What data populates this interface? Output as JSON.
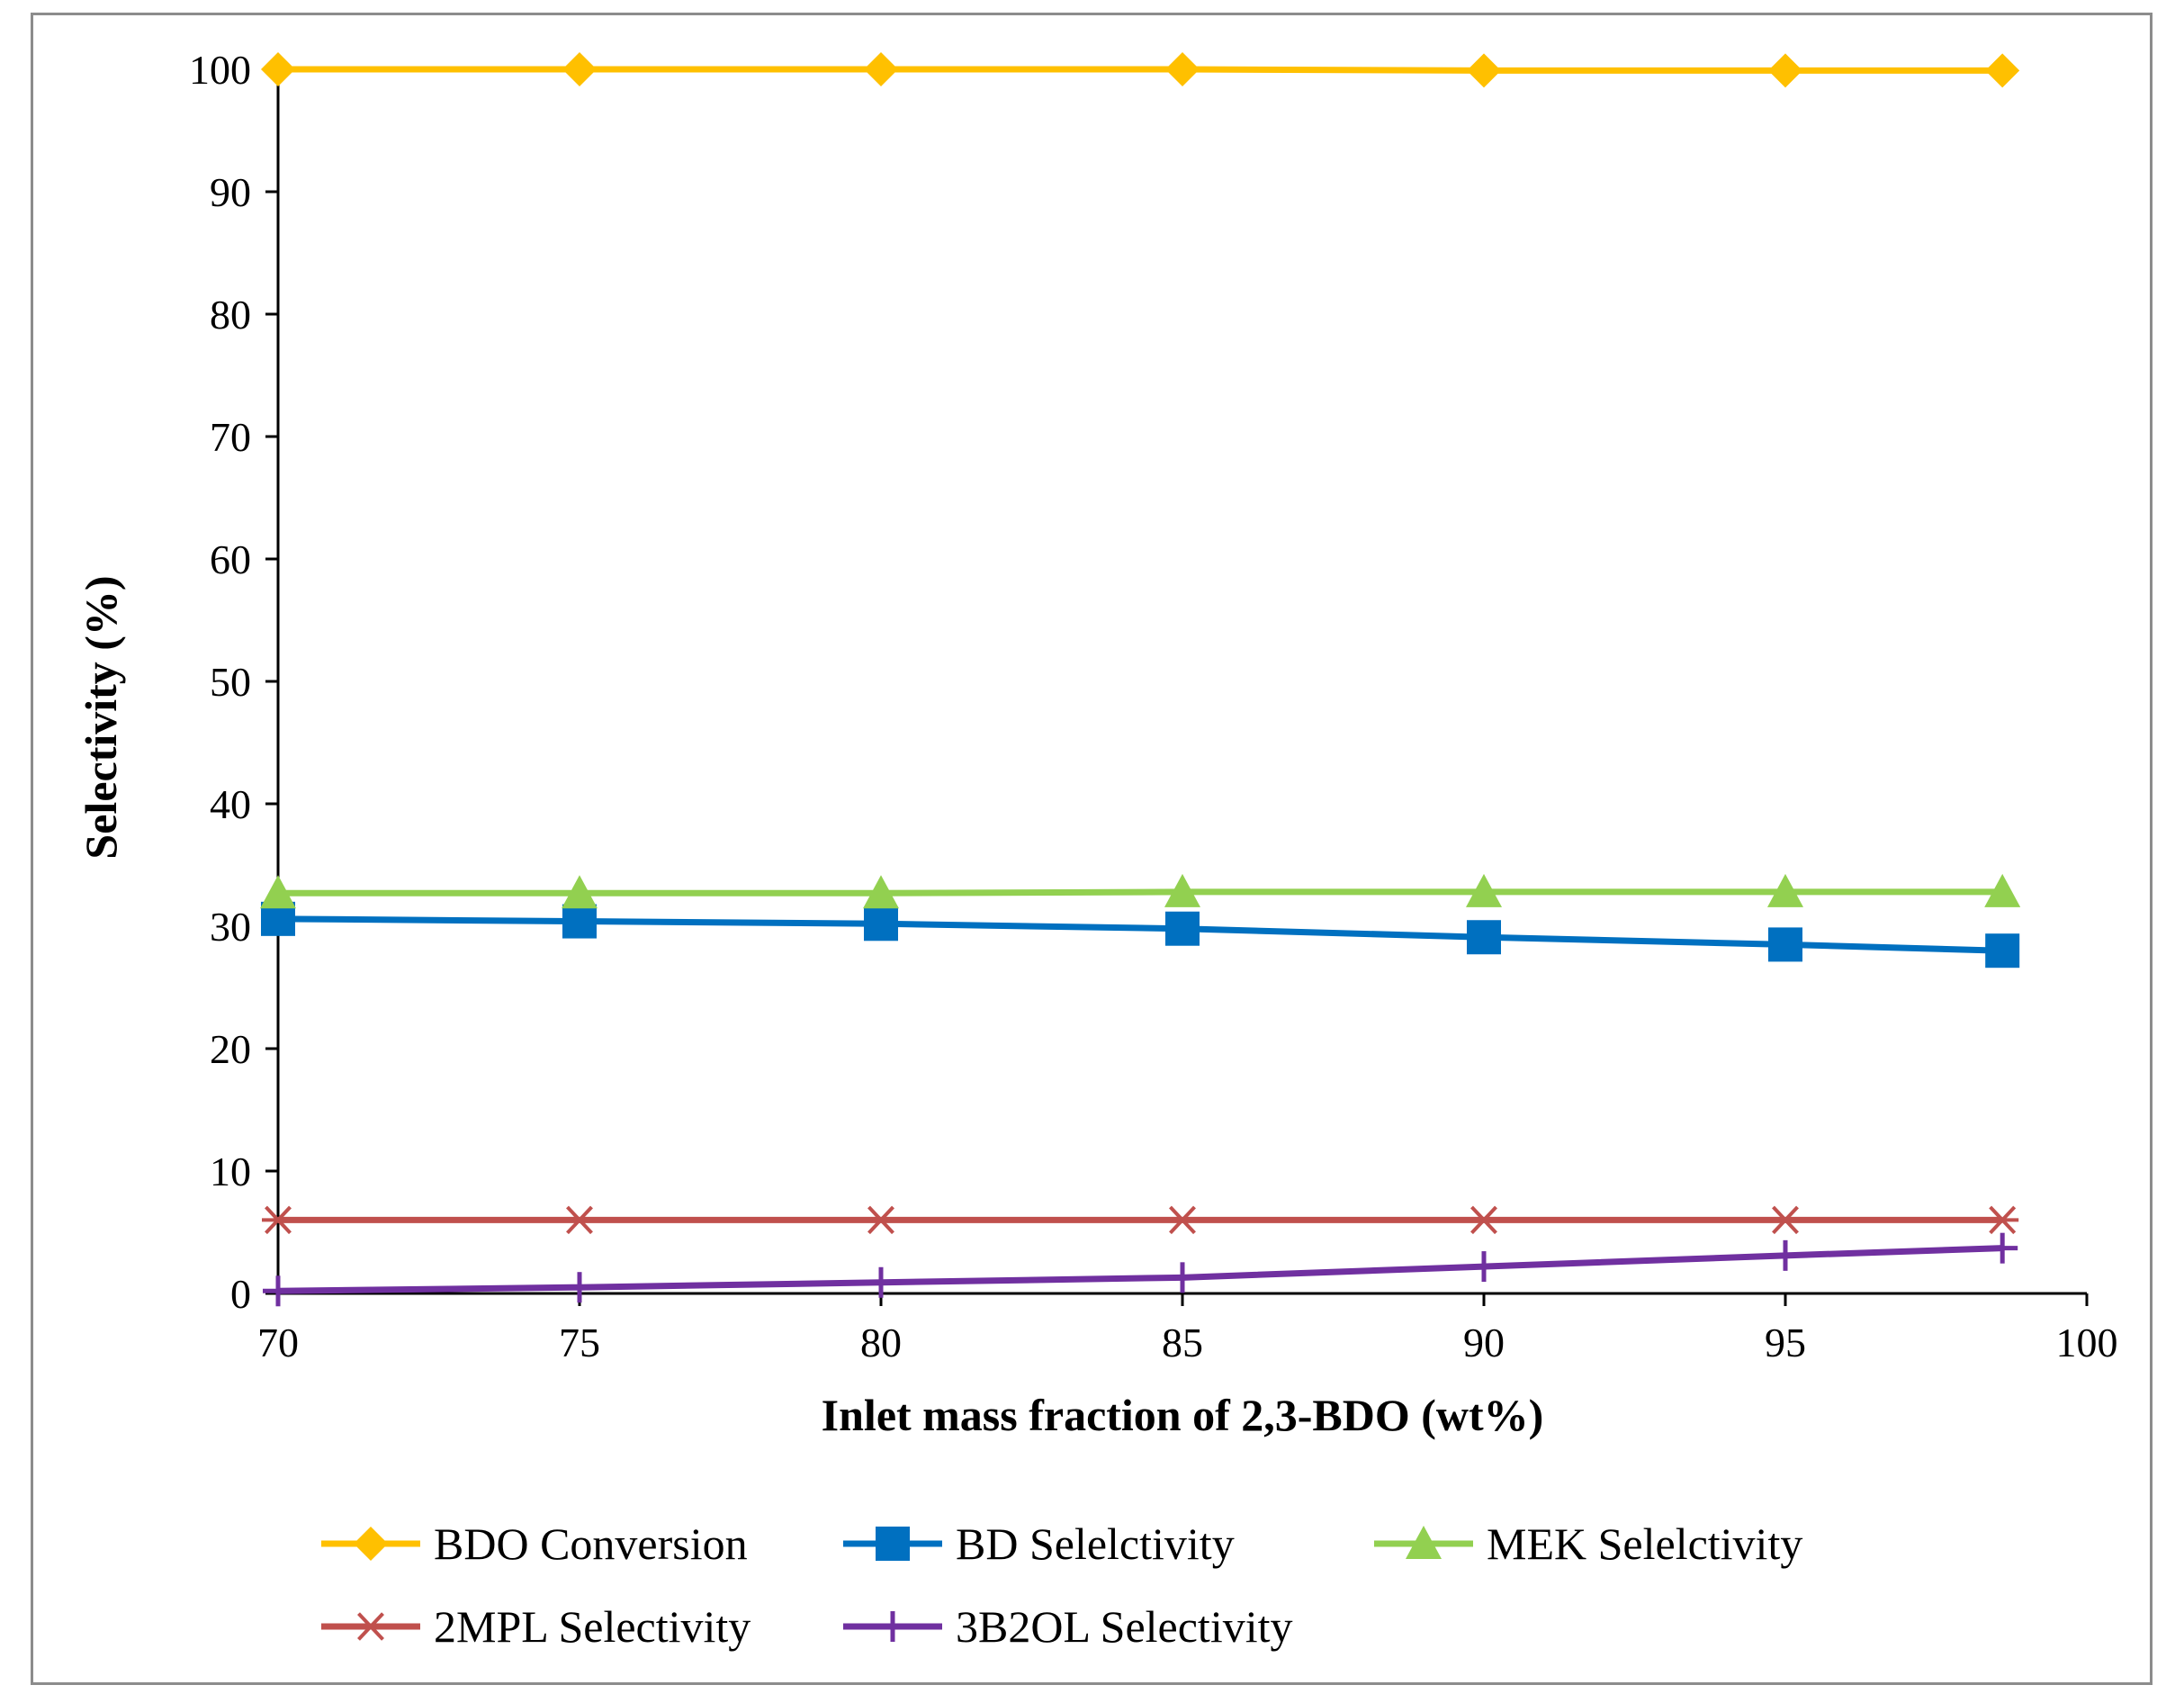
{
  "chart_data": {
    "type": "line",
    "title": "",
    "xlabel": "Inlet mass fraction of 2,3-BDO (wt%)",
    "ylabel": "Selectivity (%)",
    "xlim": [
      70,
      100
    ],
    "ylim": [
      0,
      100
    ],
    "xticks": [
      70,
      75,
      80,
      85,
      90,
      95,
      100
    ],
    "yticks": [
      0,
      10,
      20,
      30,
      40,
      50,
      60,
      70,
      80,
      90,
      100
    ],
    "grid": false,
    "legend_position": "bottom",
    "x": [
      70,
      75,
      80,
      85,
      90,
      95,
      98.6
    ],
    "series": [
      {
        "name": "BDO Conversion",
        "color": "#FFC000",
        "marker": "diamond",
        "values": [
          100,
          100,
          100,
          100,
          99.9,
          99.9,
          99.9
        ]
      },
      {
        "name": "BD Selelctivity",
        "color": "#0070C0",
        "marker": "square",
        "values": [
          30.6,
          30.4,
          30.2,
          29.8,
          29.1,
          28.5,
          28.0
        ]
      },
      {
        "name": "MEK Selelctivity",
        "color": "#92D050",
        "marker": "triangle",
        "values": [
          32.7,
          32.7,
          32.7,
          32.8,
          32.8,
          32.8,
          32.8
        ]
      },
      {
        "name": "2MPL Selectivity",
        "color": "#C0504D",
        "marker": "asterisk",
        "values": [
          6.0,
          6.0,
          6.0,
          6.0,
          6.0,
          6.0,
          6.0
        ]
      },
      {
        "name": "3B2OL Selectivity",
        "color": "#7030A0",
        "marker": "plus",
        "values": [
          0.2,
          0.5,
          0.9,
          1.3,
          2.2,
          3.1,
          3.7
        ]
      }
    ]
  }
}
